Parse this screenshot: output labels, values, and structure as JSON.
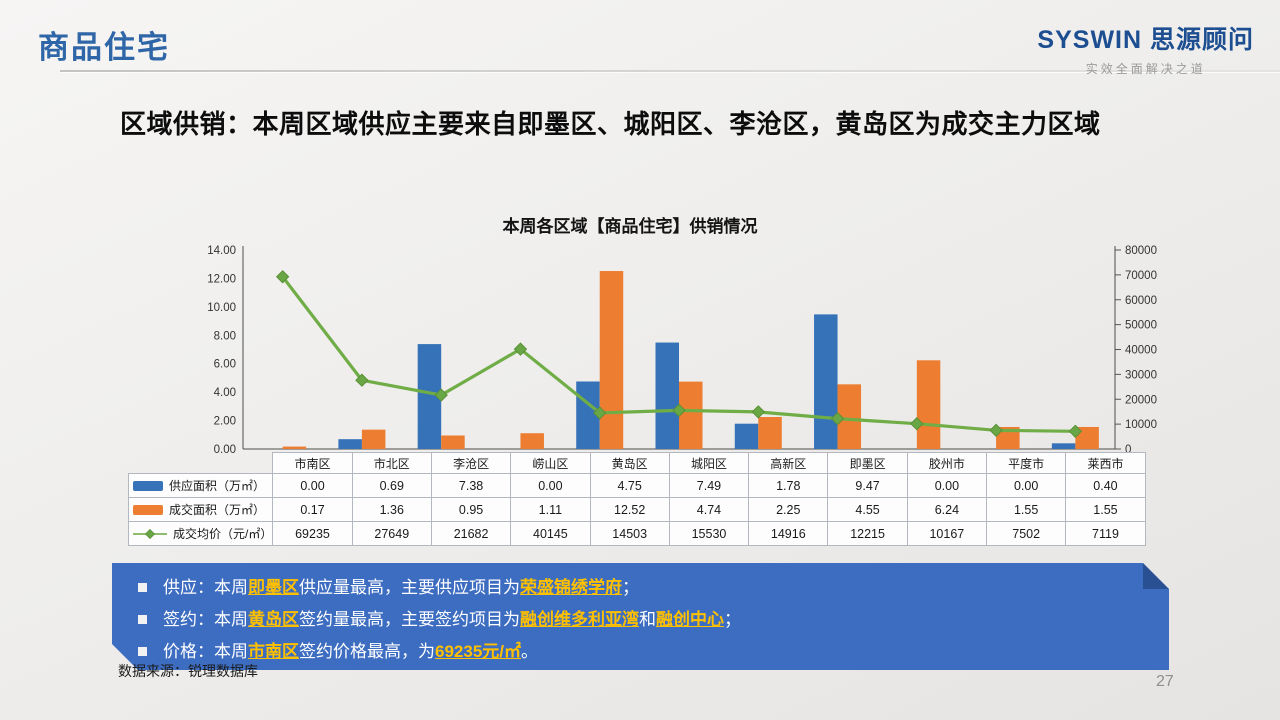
{
  "header": {
    "section_title": "商品住宅",
    "logo_text": "SYSWIN 思源顾问",
    "logo_tagline": "实效全面解决之道"
  },
  "headline": "区域供销：本周区域供应主要来自即墨区、城阳区、李沧区，黄岛区为成交主力区域",
  "chart_data": {
    "type": "bar+line combo",
    "title": "本周各区域【商品住宅】供销情况",
    "categories": [
      "市南区",
      "市北区",
      "李沧区",
      "崂山区",
      "黄岛区",
      "城阳区",
      "高新区",
      "即墨区",
      "胶州市",
      "平度市",
      "莱西市"
    ],
    "series": [
      {
        "name": "供应面积（万㎡）",
        "type": "bar",
        "axis": "left",
        "color": "#3572b8",
        "values": [
          "0.00",
          "0.69",
          "7.38",
          "0.00",
          "4.75",
          "7.49",
          "1.78",
          "9.47",
          "0.00",
          "0.00",
          "0.40"
        ]
      },
      {
        "name": "成交面积（万㎡）",
        "type": "bar",
        "axis": "left",
        "color": "#ed7d31",
        "values": [
          "0.17",
          "1.36",
          "0.95",
          "1.11",
          "12.52",
          "4.74",
          "2.25",
          "4.55",
          "6.24",
          "1.55",
          "1.55"
        ]
      },
      {
        "name": "成交均价（元/㎡）",
        "type": "line",
        "axis": "right",
        "color": "#70ad47",
        "values": [
          "69235",
          "27649",
          "21682",
          "40145",
          "14503",
          "15530",
          "14916",
          "12215",
          "10167",
          "7502",
          "7119"
        ]
      }
    ],
    "left_axis": {
      "min": 0,
      "max": 14,
      "step": 2,
      "tick_labels": [
        "0.00",
        "2.00",
        "4.00",
        "6.00",
        "8.00",
        "10.00",
        "12.00",
        "14.00"
      ]
    },
    "right_axis": {
      "min": 0,
      "max": 80000,
      "step": 10000,
      "tick_labels": [
        "0",
        "10000",
        "20000",
        "30000",
        "40000",
        "50000",
        "60000",
        "70000",
        "80000"
      ]
    },
    "grid": false,
    "legend_position": "table-left-column"
  },
  "callout": {
    "accent_blue": "#3d6dc1",
    "fold_blue": "#2a5094",
    "highlight_color": "#ffc000",
    "bullets": [
      {
        "segments": [
          {
            "t": "供应：本周"
          },
          {
            "t": "即墨区",
            "h": true
          },
          {
            "t": "供应量最高，主要供应项目为"
          },
          {
            "t": "荣盛锦绣学府",
            "h": true
          },
          {
            "t": "；"
          }
        ]
      },
      {
        "segments": [
          {
            "t": "签约：本周"
          },
          {
            "t": "黄岛区",
            "h": true
          },
          {
            "t": "签约量最高，主要签约项目为"
          },
          {
            "t": "融创维多利亚湾",
            "h": true
          },
          {
            "t": "和"
          },
          {
            "t": "融创中心",
            "h": true
          },
          {
            "t": "；"
          }
        ]
      },
      {
        "segments": [
          {
            "t": "价格：本周"
          },
          {
            "t": "市南区",
            "h": true
          },
          {
            "t": "签约价格最高，为"
          },
          {
            "t": "69235元/㎡",
            "h": true
          },
          {
            "t": "。"
          }
        ]
      }
    ]
  },
  "footer": {
    "source": "数据来源：锐理数据库",
    "page": "27"
  }
}
